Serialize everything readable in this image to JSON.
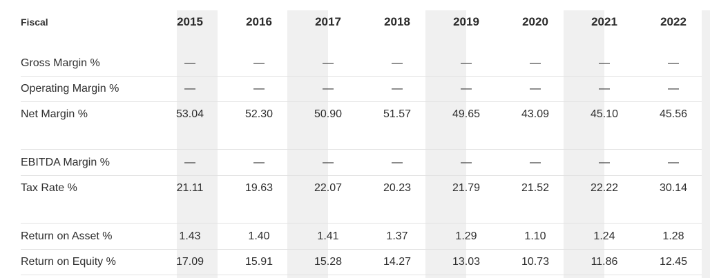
{
  "table": {
    "corner_header": "Fiscal",
    "years": [
      "2015",
      "2016",
      "2017",
      "2018",
      "2019",
      "2020",
      "2021",
      "2022"
    ],
    "rows": [
      {
        "label": "Gross Margin %",
        "values": [
          "—",
          "—",
          "—",
          "—",
          "—",
          "—",
          "—",
          "—"
        ]
      },
      {
        "label": "Operating Margin %",
        "values": [
          "—",
          "—",
          "—",
          "—",
          "—",
          "—",
          "—",
          "—"
        ]
      },
      {
        "label": "Net Margin %",
        "values": [
          "53.04",
          "52.30",
          "50.90",
          "51.57",
          "49.65",
          "43.09",
          "45.10",
          "45.56"
        ]
      },
      {
        "label": "EBITDA Margin %",
        "values": [
          "—",
          "—",
          "—",
          "—",
          "—",
          "—",
          "—",
          "—"
        ]
      },
      {
        "label": "Tax Rate %",
        "values": [
          "21.11",
          "19.63",
          "22.07",
          "20.23",
          "21.79",
          "21.52",
          "22.22",
          "30.14"
        ]
      },
      {
        "label": "Return on Asset %",
        "values": [
          "1.43",
          "1.40",
          "1.41",
          "1.37",
          "1.29",
          "1.10",
          "1.24",
          "1.28"
        ]
      },
      {
        "label": "Return on Equity %",
        "values": [
          "17.09",
          "15.91",
          "15.28",
          "14.27",
          "13.03",
          "10.73",
          "11.86",
          "12.45"
        ]
      }
    ]
  }
}
